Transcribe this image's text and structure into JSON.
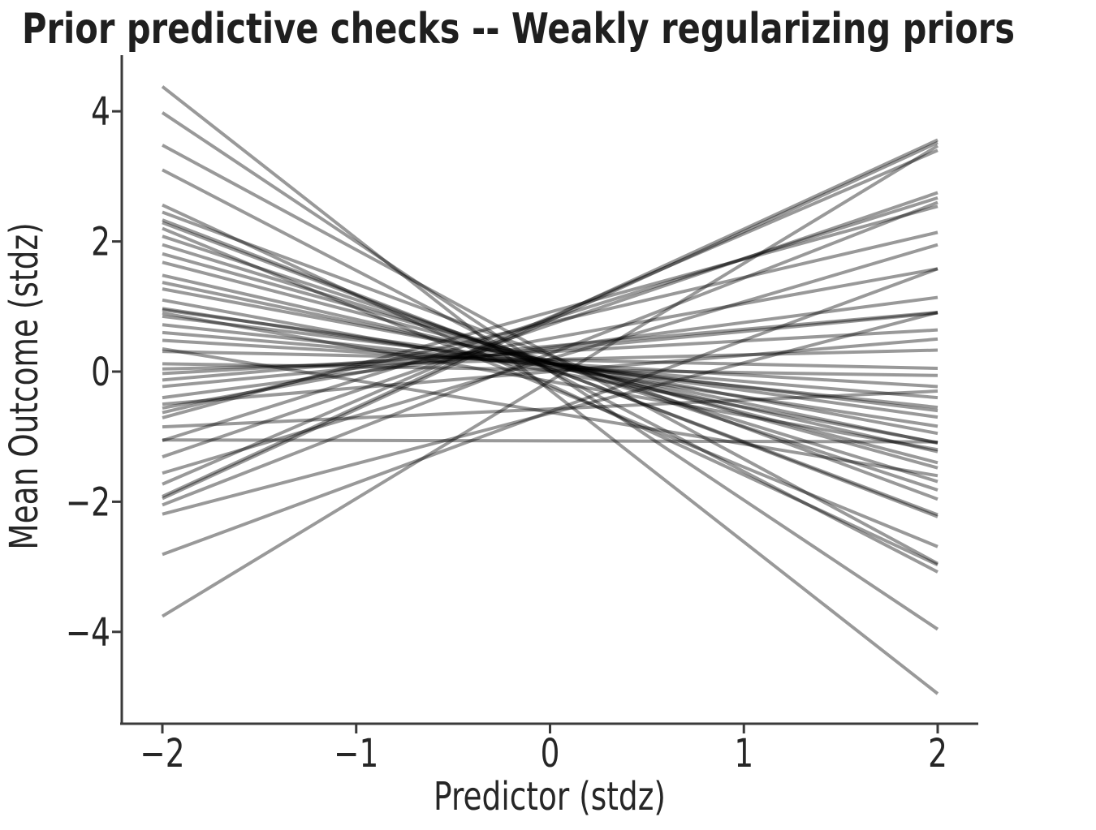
{
  "page": {
    "background_color": "#ffffff"
  },
  "chart_data": {
    "type": "line",
    "title": "Prior predictive checks -- Weakly regularizing priors",
    "xlabel": "Predictor (stdz)",
    "ylabel": "Mean Outcome (stdz)",
    "grid": false,
    "legend": "none",
    "x_range": [
      -2,
      2
    ],
    "xlim": [
      -2.21,
      2.21
    ],
    "ylim": [
      -5.41,
      4.86
    ],
    "x_ticks": {
      "values": [
        -2,
        -1,
        0,
        1,
        2
      ],
      "labels": [
        "−2",
        "−1",
        "0",
        "1",
        "2"
      ]
    },
    "y_ticks": {
      "values": [
        4,
        2,
        0,
        -2,
        -4
      ],
      "labels": [
        "4",
        "2",
        "0",
        "−2",
        "−4"
      ]
    },
    "style": {
      "line_color": "#000000",
      "line_opacity": 0.4,
      "line_width": 4,
      "spine_color": "#3a3a3a",
      "tick_color": "#3a3a3a",
      "text_color": "#262626",
      "background": "#ffffff"
    },
    "lines_note": "each line is y = intercept + slope * x drawn over x_range, semi-transparent gray",
    "lines": [
      {
        "a": -0.285,
        "b": -2.3325
      },
      {
        "a": 0.01,
        "b": -1.985
      },
      {
        "a": 0.265,
        "b": -1.6075
      },
      {
        "a": 0.01,
        "b": -1.545
      },
      {
        "a": -0.205,
        "b": -1.3825
      },
      {
        "a": 0.245,
        "b": -1.1025
      },
      {
        "a": 0.05,
        "b": -1.14
      },
      {
        "a": 0.045,
        "b": -1.1225
      },
      {
        "a": -0.245,
        "b": -1.2225
      },
      {
        "a": 0.13,
        "b": -0.975
      },
      {
        "a": 0.13,
        "b": -0.91
      },
      {
        "a": 0.165,
        "b": -0.8225
      },
      {
        "a": 0.14,
        "b": -0.77
      },
      {
        "a": 0.125,
        "b": -0.6775
      },
      {
        "a": 0.135,
        "b": -0.6175
      },
      {
        "a": 0.16,
        "b": -0.555
      },
      {
        "a": 0.005,
        "b": -0.5475
      },
      {
        "a": 0.065,
        "b": -0.4525
      },
      {
        "a": 0.125,
        "b": -0.4125
      },
      {
        "a": 0.125,
        "b": -0.3625
      },
      {
        "a": -0.15,
        "b": -0.525
      },
      {
        "a": 0.085,
        "b": -0.3175
      },
      {
        "a": 0.1,
        "b": -0.25
      },
      {
        "a": 0.125,
        "b": -0.1775
      },
      {
        "a": -0.625,
        "b": -0.4875
      },
      {
        "a": 0.18,
        "b": -0.065
      },
      {
        "a": 0.03,
        "b": -0.045
      },
      {
        "a": 0.185,
        "b": 0.0725
      },
      {
        "a": 0.305,
        "b": 0.1675
      },
      {
        "a": 0.39,
        "b": 0.26
      },
      {
        "a": 0.335,
        "b": 0.2825
      },
      {
        "a": 0.37,
        "b": 0.385
      },
      {
        "a": 0.0,
        "b": 0.25
      },
      {
        "a": 0.51,
        "b": 0.535
      },
      {
        "a": 0.755,
        "b": 0.6925
      },
      {
        "a": 0.915,
        "b": 0.8125
      },
      {
        "a": -0.575,
        "b": 0.1375
      },
      {
        "a": -1.065,
        "b": -0.0075
      },
      {
        "a": 0.805,
        "b": 0.9325
      },
      {
        "a": 0.72,
        "b": 1.015
      },
      {
        "a": 0.195,
        "b": 0.8775
      },
      {
        "a": 0.835,
        "b": 1.2825
      },
      {
        "a": 0.82,
        "b": 1.37
      },
      {
        "a": 0.785,
        "b": 1.3675
      },
      {
        "a": 0.275,
        "b": 1.1625
      },
      {
        "a": -0.64,
        "b": 0.775
      },
      {
        "a": -0.615,
        "b": 1.0975
      },
      {
        "a": -0.145,
        "b": 1.8075
      }
    ]
  }
}
